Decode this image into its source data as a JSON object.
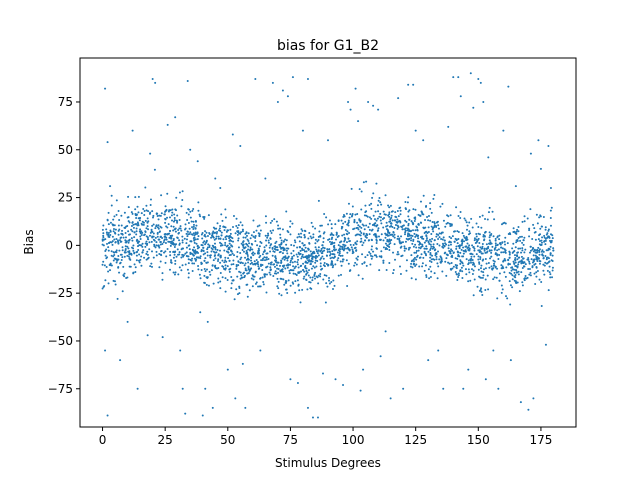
{
  "chart_data": {
    "type": "scatter",
    "title": "bias for G1_B2",
    "xlabel": "Stimulus Degrees",
    "ylabel": "Bias",
    "xlim": [
      -9,
      189
    ],
    "ylim": [
      -95,
      98
    ],
    "xticks": [
      0,
      25,
      50,
      75,
      100,
      125,
      150,
      175
    ],
    "yticks": [
      -75,
      -50,
      -25,
      0,
      25,
      50,
      75
    ],
    "xtick_labels": [
      "0",
      "25",
      "50",
      "75",
      "100",
      "125",
      "150",
      "175"
    ],
    "ytick_labels": [
      "−75",
      "−50",
      "−25",
      "0",
      "25",
      "50",
      "75"
    ],
    "grid": false,
    "legend": "none",
    "marker_color": "#1f77b4",
    "trend": {
      "x": [
        0,
        10,
        20,
        30,
        40,
        50,
        60,
        70,
        80,
        90,
        100,
        110,
        120,
        130,
        140,
        150,
        160,
        170,
        180
      ],
      "y": [
        0,
        4,
        7,
        4,
        0,
        -3,
        -5,
        -7,
        -8,
        -4,
        5,
        7,
        6,
        2,
        -2,
        -5,
        -6,
        -6,
        0
      ]
    },
    "spread_std": 9,
    "n_points": 2900,
    "outliers": [
      {
        "x": 1,
        "y": 82
      },
      {
        "x": 2,
        "y": 54
      },
      {
        "x": 2,
        "y": -89
      },
      {
        "x": 1,
        "y": -55
      },
      {
        "x": 3,
        "y": 31
      },
      {
        "x": 6,
        "y": -28
      },
      {
        "x": 7,
        "y": -60
      },
      {
        "x": 10,
        "y": -40
      },
      {
        "x": 12,
        "y": 60
      },
      {
        "x": 14,
        "y": -75
      },
      {
        "x": 18,
        "y": -47
      },
      {
        "x": 19,
        "y": 48
      },
      {
        "x": 20,
        "y": 87
      },
      {
        "x": 21,
        "y": 85
      },
      {
        "x": 24,
        "y": -48
      },
      {
        "x": 26,
        "y": 63
      },
      {
        "x": 29,
        "y": 67
      },
      {
        "x": 31,
        "y": -55
      },
      {
        "x": 32,
        "y": -75
      },
      {
        "x": 33,
        "y": -88
      },
      {
        "x": 34,
        "y": 86
      },
      {
        "x": 35,
        "y": 50
      },
      {
        "x": 38,
        "y": 44
      },
      {
        "x": 39,
        "y": -35
      },
      {
        "x": 40,
        "y": -89
      },
      {
        "x": 41,
        "y": -75
      },
      {
        "x": 42,
        "y": -40
      },
      {
        "x": 44,
        "y": -85
      },
      {
        "x": 45,
        "y": 35
      },
      {
        "x": 47,
        "y": 30
      },
      {
        "x": 50,
        "y": -65
      },
      {
        "x": 52,
        "y": 58
      },
      {
        "x": 53,
        "y": -80
      },
      {
        "x": 55,
        "y": 52
      },
      {
        "x": 56,
        "y": -62
      },
      {
        "x": 57,
        "y": -85
      },
      {
        "x": 61,
        "y": 87
      },
      {
        "x": 63,
        "y": -55
      },
      {
        "x": 65,
        "y": 35
      },
      {
        "x": 68,
        "y": 85
      },
      {
        "x": 70,
        "y": 75
      },
      {
        "x": 72,
        "y": 81
      },
      {
        "x": 74,
        "y": 78
      },
      {
        "x": 75,
        "y": -70
      },
      {
        "x": 76,
        "y": 88
      },
      {
        "x": 78,
        "y": -72
      },
      {
        "x": 80,
        "y": 60
      },
      {
        "x": 82,
        "y": 87
      },
      {
        "x": 82,
        "y": -85
      },
      {
        "x": 84,
        "y": -90
      },
      {
        "x": 86,
        "y": -90
      },
      {
        "x": 88,
        "y": -67
      },
      {
        "x": 90,
        "y": 55
      },
      {
        "x": 93,
        "y": -70
      },
      {
        "x": 96,
        "y": -73
      },
      {
        "x": 98,
        "y": 75
      },
      {
        "x": 99,
        "y": 71
      },
      {
        "x": 101,
        "y": 82
      },
      {
        "x": 102,
        "y": 65
      },
      {
        "x": 103,
        "y": -76
      },
      {
        "x": 104,
        "y": -65
      },
      {
        "x": 106,
        "y": 75
      },
      {
        "x": 108,
        "y": 73
      },
      {
        "x": 110,
        "y": 71
      },
      {
        "x": 111,
        "y": -58
      },
      {
        "x": 113,
        "y": -45
      },
      {
        "x": 115,
        "y": -80
      },
      {
        "x": 118,
        "y": 77
      },
      {
        "x": 120,
        "y": -75
      },
      {
        "x": 122,
        "y": 84
      },
      {
        "x": 124,
        "y": 84
      },
      {
        "x": 125,
        "y": 60
      },
      {
        "x": 128,
        "y": 55
      },
      {
        "x": 130,
        "y": -60
      },
      {
        "x": 134,
        "y": -55
      },
      {
        "x": 136,
        "y": -75
      },
      {
        "x": 138,
        "y": 62
      },
      {
        "x": 140,
        "y": 88
      },
      {
        "x": 142,
        "y": 88
      },
      {
        "x": 143,
        "y": 78
      },
      {
        "x": 144,
        "y": -75
      },
      {
        "x": 146,
        "y": -65
      },
      {
        "x": 147,
        "y": 90
      },
      {
        "x": 148,
        "y": 72
      },
      {
        "x": 150,
        "y": 87
      },
      {
        "x": 151,
        "y": 85
      },
      {
        "x": 152,
        "y": 75
      },
      {
        "x": 153,
        "y": -70
      },
      {
        "x": 154,
        "y": 46
      },
      {
        "x": 156,
        "y": -55
      },
      {
        "x": 158,
        "y": -75
      },
      {
        "x": 160,
        "y": 60
      },
      {
        "x": 162,
        "y": 83
      },
      {
        "x": 163,
        "y": -60
      },
      {
        "x": 165,
        "y": 31
      },
      {
        "x": 167,
        "y": -82
      },
      {
        "x": 170,
        "y": -86
      },
      {
        "x": 171,
        "y": 48
      },
      {
        "x": 172,
        "y": -80
      },
      {
        "x": 174,
        "y": 55
      },
      {
        "x": 175,
        "y": 40
      },
      {
        "x": 177,
        "y": -52
      },
      {
        "x": 178,
        "y": 52
      },
      {
        "x": 179,
        "y": 30
      }
    ]
  }
}
